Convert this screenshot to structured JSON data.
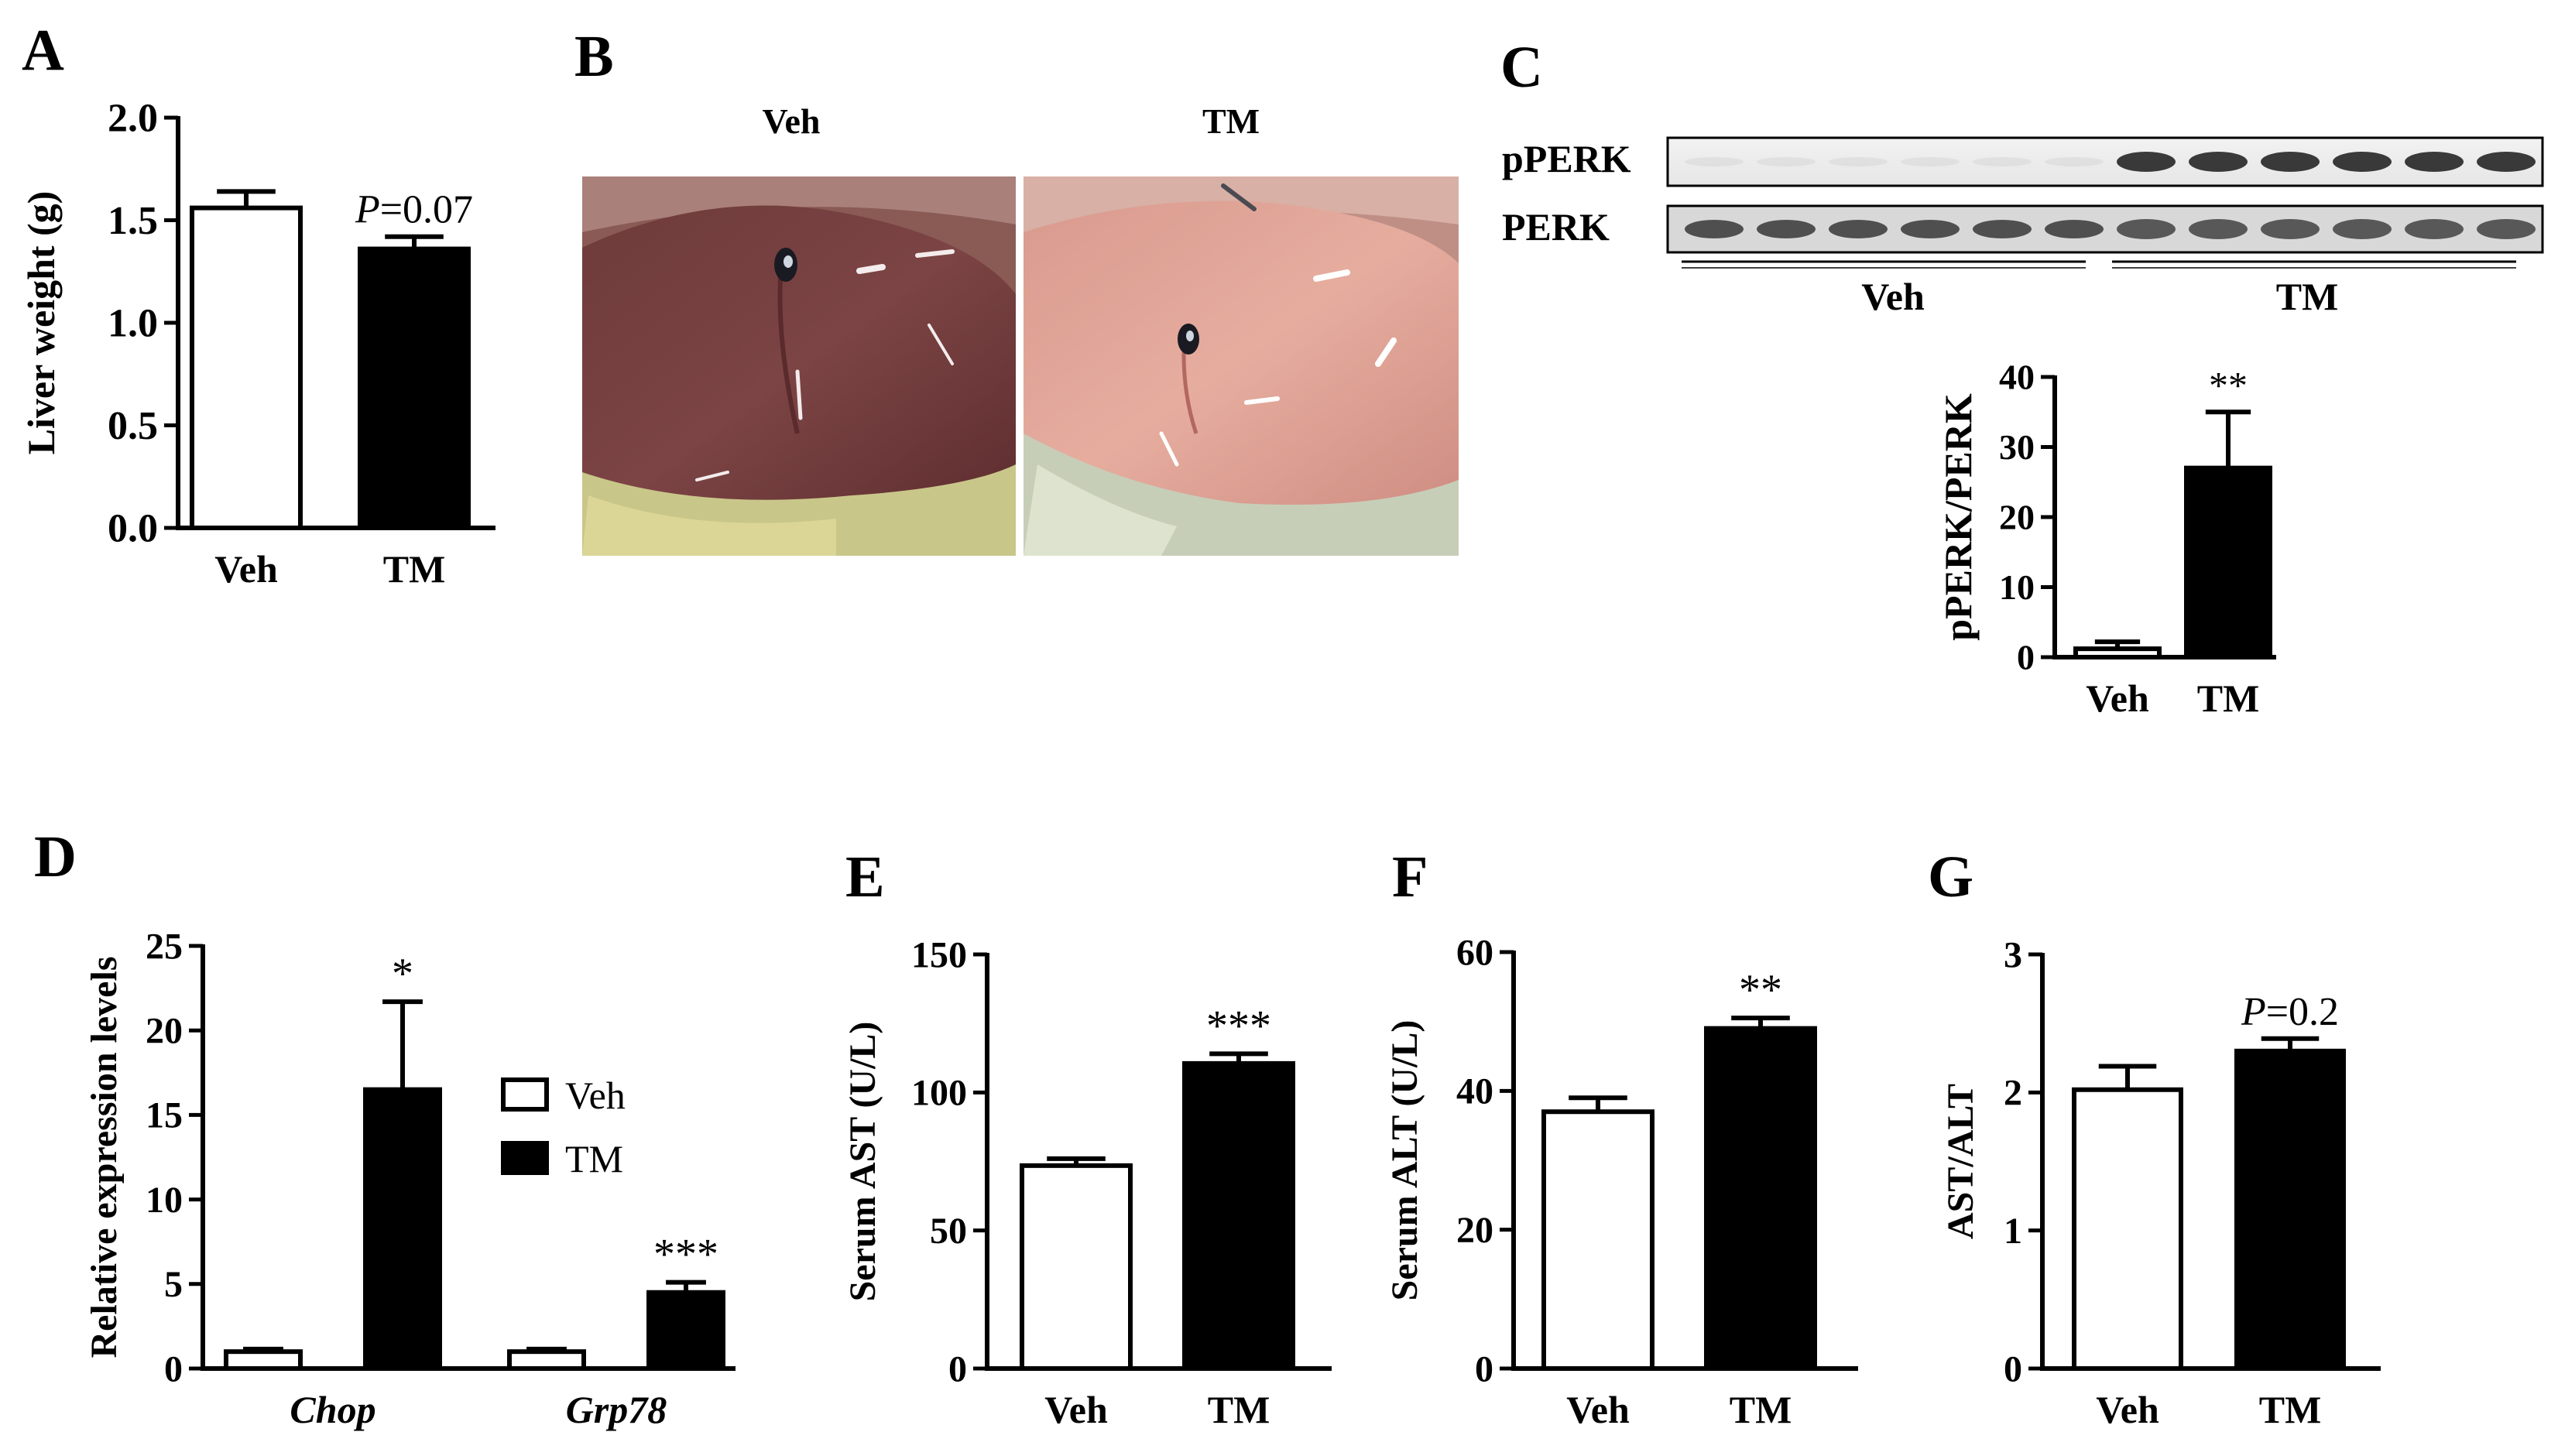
{
  "panels": {
    "A": {
      "letter": "A"
    },
    "B": {
      "letter": "B",
      "labels": [
        "Veh",
        "TM"
      ]
    },
    "C": {
      "letter": "C",
      "blot_rows": [
        "pPERK",
        "PERK"
      ],
      "groups": [
        "Veh",
        "TM"
      ]
    },
    "D": {
      "letter": "D"
    },
    "E": {
      "letter": "E"
    },
    "F": {
      "letter": "F"
    },
    "G": {
      "letter": "G"
    }
  },
  "colors": {
    "veh": "#ffffff",
    "tm": "#000000",
    "stroke": "#000000"
  },
  "chart_data": [
    {
      "id": "A",
      "type": "bar",
      "categories": [
        "Veh",
        "TM"
      ],
      "values": [
        1.56,
        1.36
      ],
      "errors": [
        0.08,
        0.06
      ],
      "ylabel": "Liver weight  (g)",
      "ylim": [
        0,
        2.0
      ],
      "yticks": [
        0.0,
        0.5,
        1.0,
        1.5,
        2.0
      ],
      "ytick_labels": [
        "0.0",
        "0.5",
        "1.0",
        "1.5",
        "2.0"
      ],
      "annotations": [
        {
          "bar": 1,
          "text": "=0.07",
          "italic_prefix": "P"
        }
      ]
    },
    {
      "id": "C",
      "type": "bar",
      "categories": [
        "Veh",
        "TM"
      ],
      "values": [
        1.2,
        27.0
      ],
      "errors": [
        1.0,
        8.0
      ],
      "ylabel": "pPERK/PERK",
      "ylim": [
        0,
        40
      ],
      "yticks": [
        0,
        10,
        20,
        30,
        40
      ],
      "ytick_labels": [
        "0",
        "10",
        "20",
        "30",
        "40"
      ],
      "annotations": [
        {
          "bar": 1,
          "text": "**"
        }
      ]
    },
    {
      "id": "D",
      "type": "bar",
      "categories": [
        "Chop",
        "Grp78"
      ],
      "series": [
        {
          "name": "Veh",
          "values": [
            1.0,
            1.0
          ],
          "errors": [
            0.15,
            0.15
          ]
        },
        {
          "name": "TM",
          "values": [
            16.5,
            4.5
          ],
          "errors": [
            5.2,
            0.6
          ]
        }
      ],
      "ylabel": "Relative expression levels",
      "ylim": [
        0,
        25
      ],
      "yticks": [
        0,
        5,
        10,
        15,
        20,
        25
      ],
      "ytick_labels": [
        "0",
        "5",
        "10",
        "15",
        "20",
        "25"
      ],
      "annotations": [
        {
          "category": 0,
          "text": "*"
        },
        {
          "category": 1,
          "text": "***"
        }
      ],
      "legend": "right"
    },
    {
      "id": "E",
      "type": "bar",
      "categories": [
        "Veh",
        "TM"
      ],
      "values": [
        73.5,
        110.5
      ],
      "errors": [
        2.5,
        3.5
      ],
      "ylabel": "Serum AST (U/L)",
      "ylim": [
        0,
        150
      ],
      "yticks": [
        0,
        50,
        100,
        150
      ],
      "ytick_labels": [
        "0",
        "50",
        "100",
        "150"
      ],
      "annotations": [
        {
          "bar": 1,
          "text": "***"
        }
      ]
    },
    {
      "id": "F",
      "type": "bar",
      "categories": [
        "Veh",
        "TM"
      ],
      "values": [
        37.0,
        49.0
      ],
      "errors": [
        2.0,
        1.5
      ],
      "ylabel": "Serum ALT (U/L)",
      "ylim": [
        0,
        60
      ],
      "yticks": [
        0,
        20,
        40,
        60
      ],
      "ytick_labels": [
        "0",
        "20",
        "40",
        "60"
      ],
      "annotations": [
        {
          "bar": 1,
          "text": "**"
        }
      ]
    },
    {
      "id": "G",
      "type": "bar",
      "categories": [
        "Veh",
        "TM"
      ],
      "values": [
        2.02,
        2.3
      ],
      "errors": [
        0.17,
        0.09
      ],
      "ylabel": "AST/ALT",
      "ylim": [
        0,
        3
      ],
      "yticks": [
        0,
        1,
        2,
        3
      ],
      "ytick_labels": [
        "0",
        "1",
        "2",
        "3"
      ],
      "annotations": [
        {
          "bar": 1,
          "text": "=0.2",
          "italic_prefix": "P"
        }
      ]
    }
  ]
}
